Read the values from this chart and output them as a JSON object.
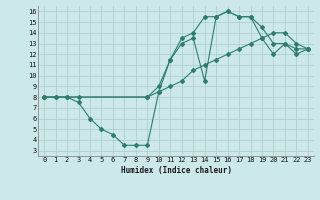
{
  "title": "",
  "xlabel": "Humidex (Indice chaleur)",
  "xlim": [
    -0.5,
    23.5
  ],
  "ylim": [
    2.5,
    16.5
  ],
  "xticks": [
    0,
    1,
    2,
    3,
    4,
    5,
    6,
    7,
    8,
    9,
    10,
    11,
    12,
    13,
    14,
    15,
    16,
    17,
    18,
    19,
    20,
    21,
    22,
    23
  ],
  "yticks": [
    3,
    4,
    5,
    6,
    7,
    8,
    9,
    10,
    11,
    12,
    13,
    14,
    15,
    16
  ],
  "bg_color": "#cce8e8",
  "line_color": "#2e7d6e",
  "grid_color": "#aacccc",
  "curve1_x": [
    0,
    1,
    2,
    3,
    4,
    5,
    6,
    7,
    8,
    9,
    10,
    11,
    12,
    13,
    14,
    15,
    16,
    17,
    18,
    19,
    20,
    21,
    22,
    23
  ],
  "curve1_y": [
    8,
    8,
    8,
    7.5,
    6.0,
    5.0,
    4.5,
    3.5,
    3.5,
    3.5,
    8.5,
    11.5,
    13.0,
    13.5,
    9.5,
    15.5,
    16.0,
    15.5,
    15.5,
    14.5,
    13.0,
    13.0,
    12.5,
    12.5
  ],
  "curve2_x": [
    0,
    1,
    2,
    3,
    9,
    10,
    11,
    12,
    13,
    14,
    15,
    16,
    17,
    18,
    19,
    20,
    21,
    22,
    23
  ],
  "curve2_y": [
    8,
    8,
    8,
    8,
    8.0,
    8.5,
    9.0,
    9.5,
    10.5,
    11.0,
    11.5,
    12.0,
    12.5,
    13.0,
    13.5,
    14.0,
    14.0,
    13.0,
    12.5
  ],
  "curve3_x": [
    0,
    9,
    10,
    11,
    12,
    13,
    14,
    15,
    16,
    17,
    18,
    19,
    20,
    21,
    22,
    23
  ],
  "curve3_y": [
    8,
    8.0,
    9.0,
    11.5,
    13.5,
    14.0,
    15.5,
    15.5,
    16.0,
    15.5,
    15.5,
    13.5,
    12.0,
    13.0,
    12.0,
    12.5
  ]
}
